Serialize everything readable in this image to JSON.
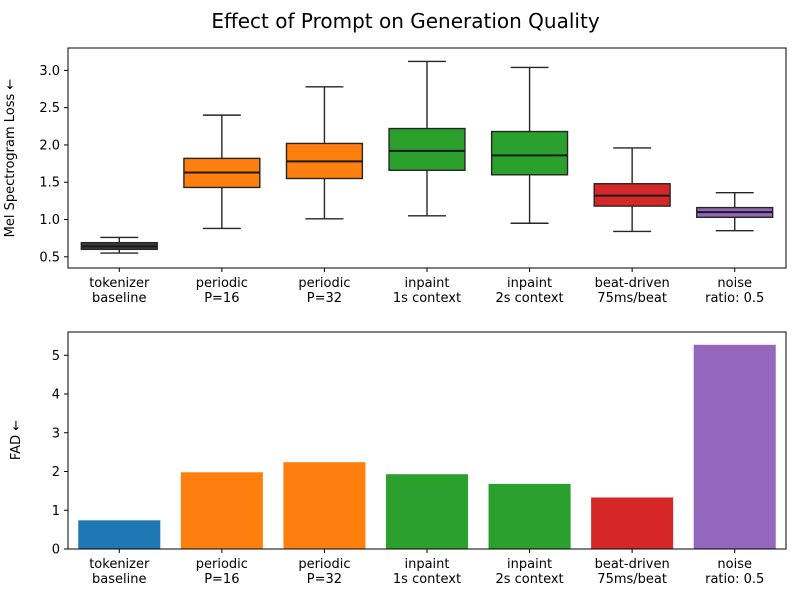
{
  "figure": {
    "title": "Effect of Prompt on Generation Quality"
  },
  "chart_data": [
    {
      "type": "boxplot",
      "ylabel": "Mel Spectrogram Loss ←",
      "categories": [
        [
          "tokenizer",
          "baseline"
        ],
        [
          "periodic",
          "P=16"
        ],
        [
          "periodic",
          "P=32"
        ],
        [
          "inpaint",
          "1s context"
        ],
        [
          "inpaint",
          "2s context"
        ],
        [
          "beat-driven",
          "75ms/beat"
        ],
        [
          "noise",
          "ratio: 0.5"
        ]
      ],
      "yticks": [
        0.5,
        1.0,
        1.5,
        2.0,
        2.5,
        3.0
      ],
      "yticklabels": [
        "0.5",
        "1.0",
        "1.5",
        "2.0",
        "2.5",
        "3.0"
      ],
      "ylim": [
        0.35,
        3.3
      ],
      "grid": false,
      "edge_color": "#262626",
      "median_color": "#1a1a1a",
      "colors": [
        "#3b3b3b",
        "#ff7f0e",
        "#ff7f0e",
        "#2ca02c",
        "#2ca02c",
        "#d62728",
        "#9467bd"
      ],
      "boxes": [
        {
          "whislo": 0.55,
          "q1": 0.6,
          "med": 0.64,
          "q3": 0.69,
          "whishi": 0.76
        },
        {
          "whislo": 0.88,
          "q1": 1.43,
          "med": 1.63,
          "q3": 1.82,
          "whishi": 2.4
        },
        {
          "whislo": 1.01,
          "q1": 1.55,
          "med": 1.78,
          "q3": 2.02,
          "whishi": 2.78
        },
        {
          "whislo": 1.05,
          "q1": 1.66,
          "med": 1.92,
          "q3": 2.22,
          "whishi": 3.12
        },
        {
          "whislo": 0.95,
          "q1": 1.6,
          "med": 1.86,
          "q3": 2.18,
          "whishi": 3.04
        },
        {
          "whislo": 0.84,
          "q1": 1.18,
          "med": 1.32,
          "q3": 1.48,
          "whishi": 1.96
        },
        {
          "whislo": 0.85,
          "q1": 1.03,
          "med": 1.1,
          "q3": 1.16,
          "whishi": 1.36
        }
      ]
    },
    {
      "type": "bar",
      "ylabel": "FAD ←",
      "categories": [
        [
          "tokenizer",
          "baseline"
        ],
        [
          "periodic",
          "P=16"
        ],
        [
          "periodic",
          "P=32"
        ],
        [
          "inpaint",
          "1s context"
        ],
        [
          "inpaint",
          "2s context"
        ],
        [
          "beat-driven",
          "75ms/beat"
        ],
        [
          "noise",
          "ratio: 0.5"
        ]
      ],
      "yticks": [
        0,
        1,
        2,
        3,
        4,
        5
      ],
      "yticklabels": [
        "0",
        "1",
        "2",
        "3",
        "4",
        "5"
      ],
      "ylim": [
        0,
        5.6
      ],
      "grid": false,
      "values": [
        0.74,
        1.98,
        2.24,
        1.93,
        1.68,
        1.33,
        5.27
      ],
      "colors": [
        "#1f77b4",
        "#ff7f0e",
        "#ff7f0e",
        "#2ca02c",
        "#2ca02c",
        "#d62728",
        "#9467bd"
      ]
    }
  ]
}
